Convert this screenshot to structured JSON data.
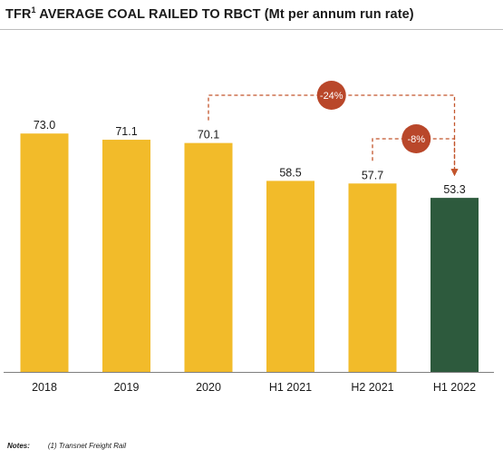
{
  "title": {
    "main": "TFR",
    "sup": "1",
    "rest": " AVERAGE COAL RAILED TO RBCT (Mt per annum run rate)"
  },
  "chart_data": {
    "type": "bar",
    "categories": [
      "2018",
      "2019",
      "2020",
      "H1 2021",
      "H2 2021",
      "H1 2022"
    ],
    "values": [
      73.0,
      71.1,
      70.1,
      58.5,
      57.7,
      53.3
    ],
    "labels": [
      "73.0",
      "71.1",
      "70.1",
      "58.5",
      "57.7",
      "53.3"
    ],
    "ylim": [
      0,
      80
    ],
    "grid": false,
    "legend": "none",
    "colors": {
      "bar": "#F2BB2A",
      "highlight": "#2D5A3D",
      "highlight_index": 5,
      "arrow": "#C2542B",
      "bubble": "#B9472A",
      "bubble_text": "#FFFFFF",
      "axis": "#7f7f7f"
    },
    "annotations": [
      {
        "text": "-24%",
        "from": "2020",
        "to": "H1 2022"
      },
      {
        "text": "-8%",
        "from": "H2 2021",
        "to": "H1 2022"
      }
    ]
  },
  "notes": {
    "label": "Notes:",
    "text": "(1) Transnet Freight Rail"
  }
}
